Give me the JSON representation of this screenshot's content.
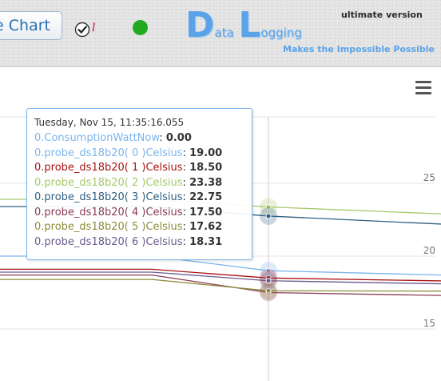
{
  "header": {
    "chart_button_label": "e Chart",
    "checkbox_label": "l",
    "status_color": "#22aa22",
    "logo": {
      "letter_d": "D",
      "part_ata": "ata",
      "letter_l": "L",
      "part_ogging": "ogging"
    },
    "version": "ultimate version",
    "tagline": "Makes the Impossible Possible"
  },
  "chart_data": {
    "type": "line",
    "ylim": [
      14,
      27
    ],
    "y_ticks": [
      "25",
      "20",
      "15"
    ],
    "y_tick_values": [
      25,
      20,
      15
    ],
    "x_index_range": [
      0,
      4
    ],
    "hover_index": 3,
    "series": [
      {
        "name": "0.ConsumptionWattNow",
        "color": "#7cb5ec",
        "values": [
          null,
          null,
          null,
          null,
          null
        ]
      },
      {
        "name": "0.probe_ds18b20( 0 )Celsius",
        "color": "#7cb5ec",
        "values": [
          20.0,
          20.0,
          20.0,
          19.0,
          18.7
        ]
      },
      {
        "name": "0.probe_ds18b20( 1 )Celsius",
        "color": "#aa1111",
        "values": [
          19.1,
          19.1,
          19.1,
          18.5,
          18.3
        ]
      },
      {
        "name": "0.probe_ds18b20( 2 )Celsius",
        "color": "#a6c96a",
        "values": [
          23.9,
          23.9,
          23.9,
          23.38,
          22.9
        ]
      },
      {
        "name": "0.probe_ds18b20( 3 )Celsius",
        "color": "#2f5f82",
        "values": [
          23.4,
          23.4,
          23.4,
          22.75,
          22.2
        ]
      },
      {
        "name": "0.probe_ds18b20( 4 )Celsius",
        "color": "#8a3a55",
        "values": [
          18.7,
          18.7,
          18.7,
          17.5,
          17.3
        ]
      },
      {
        "name": "0.probe_ds18b20( 5 )Celsius",
        "color": "#8e8c3c",
        "values": [
          18.4,
          18.4,
          18.4,
          17.62,
          17.6
        ]
      },
      {
        "name": "0.probe_ds18b20( 6 )Celsius",
        "color": "#6a5a8c",
        "values": [
          18.9,
          18.9,
          18.9,
          18.31,
          18.1
        ]
      }
    ]
  },
  "tooltip": {
    "time": "Tuesday, Nov 15, 11:35:16.055",
    "rows": [
      {
        "name": "0.ConsumptionWattNow",
        "value": "0.00",
        "color": "#7cb5ec"
      },
      {
        "name": "0.probe_ds18b20( 0 )Celsius",
        "value": "19.00",
        "color": "#7cb5ec"
      },
      {
        "name": "0.probe_ds18b20( 1 )Celsius",
        "value": "18.50",
        "color": "#aa1111"
      },
      {
        "name": "0.probe_ds18b20( 2 )Celsius",
        "value": "23.38",
        "color": "#a6c96a"
      },
      {
        "name": "0.probe_ds18b20( 3 )Celsius",
        "value": "22.75",
        "color": "#2f5f82"
      },
      {
        "name": "0.probe_ds18b20( 4 )Celsius",
        "value": "17.50",
        "color": "#8a3a55"
      },
      {
        "name": "0.probe_ds18b20( 5 )Celsius",
        "value": "17.62",
        "color": "#8e8c3c"
      },
      {
        "name": "0.probe_ds18b20( 6 )Celsius",
        "value": "18.31",
        "color": "#6a5a8c"
      }
    ]
  }
}
